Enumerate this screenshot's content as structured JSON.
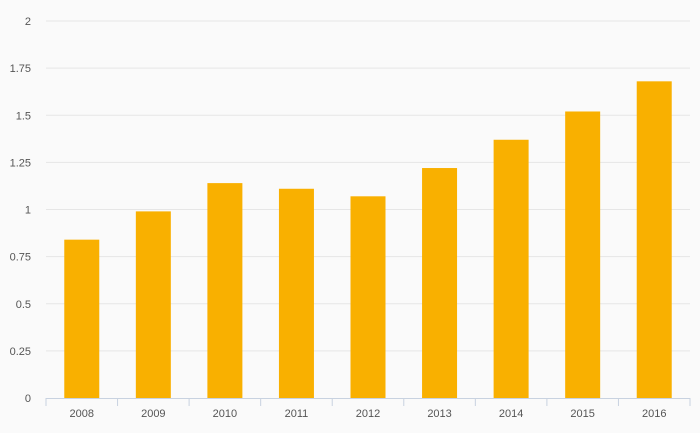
{
  "colors": {
    "bar": "#f9b000",
    "grid": "#e6e6e6",
    "axis": "#c8d2e0",
    "text": "#555555",
    "background": "#fafafa"
  },
  "chart_data": {
    "type": "bar",
    "title": "",
    "xlabel": "",
    "ylabel": "",
    "categories": [
      "2008",
      "2009",
      "2010",
      "2011",
      "2012",
      "2013",
      "2014",
      "2015",
      "2016"
    ],
    "values": [
      0.84,
      0.99,
      1.14,
      1.11,
      1.07,
      1.22,
      1.37,
      1.52,
      1.68
    ],
    "ylim": [
      0,
      2
    ],
    "yticks": [
      0,
      0.25,
      0.5,
      0.75,
      1,
      1.25,
      1.5,
      1.75,
      2
    ],
    "ytick_labels": [
      "0",
      "0.25",
      "0.5",
      "0.75",
      "1",
      "1.25",
      "1.5",
      "1.75",
      "2"
    ],
    "grid": true,
    "legend": "none"
  }
}
